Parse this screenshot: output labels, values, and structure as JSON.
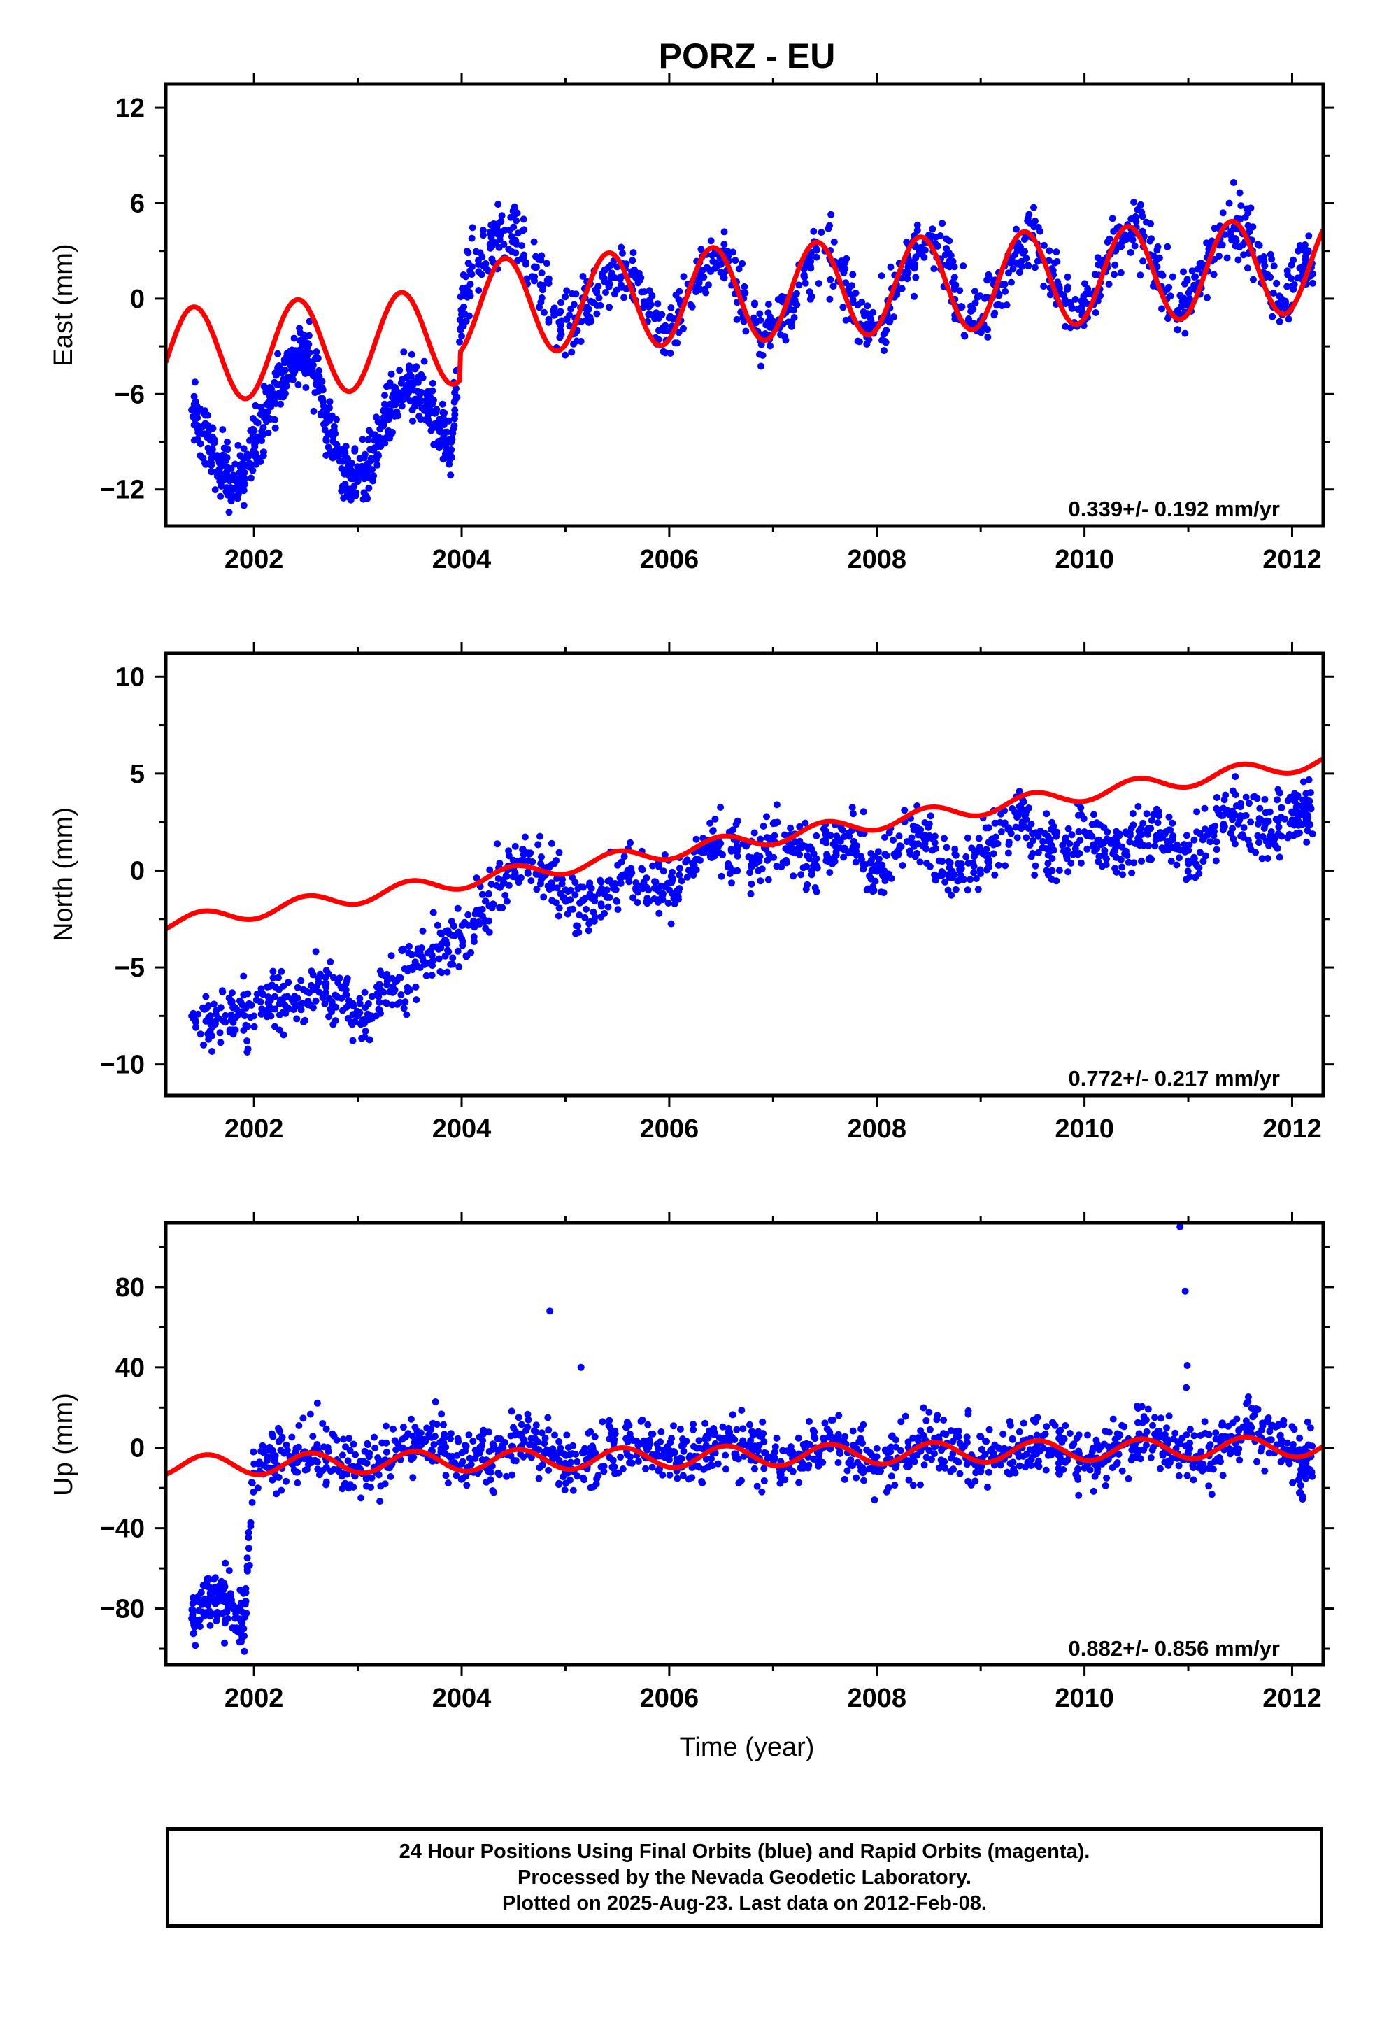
{
  "title": "PORZ - EU",
  "colors": {
    "final_orbits": "#0000ff",
    "model_fit": "#ff0000",
    "frame": "#000000"
  },
  "chart_data": [
    {
      "type": "scatter",
      "component": "east",
      "ylabel": "East (mm)",
      "xlabel": "",
      "xlim": [
        2001.15,
        2012.3
      ],
      "ylim": [
        -14.3,
        13.5
      ],
      "xticks": [
        2002,
        2004,
        2006,
        2008,
        2010,
        2012
      ],
      "xtick_labels": [
        "2002",
        "2004",
        "2006",
        "2008",
        "2010",
        "2012"
      ],
      "yticks": [
        -12,
        -6,
        0,
        6,
        12
      ],
      "ytick_labels": [
        "−12",
        "−6",
        "0",
        "6",
        "12"
      ],
      "rate_label": "0.339+/- 0.192 mm/yr",
      "series": [
        {
          "kind": "points",
          "x": [
            2001.4,
            2001.5,
            2001.6,
            2001.7,
            2001.8,
            2001.9,
            2002.0,
            2002.1,
            2002.2,
            2002.3,
            2002.4,
            2002.5,
            2002.6,
            2002.7,
            2002.8,
            2002.9,
            2003.0,
            2003.1,
            2003.2,
            2003.3,
            2003.4,
            2003.5,
            2003.6,
            2003.7,
            2003.8,
            2003.9,
            2004.0,
            2004.1,
            2004.3,
            2004.5,
            2004.7,
            2004.9,
            2005.1,
            2005.3,
            2005.5,
            2005.7,
            2005.9,
            2006.1,
            2006.3,
            2006.5,
            2006.7,
            2006.9,
            2007.1,
            2007.3,
            2007.5,
            2007.7,
            2007.9,
            2008.1,
            2008.3,
            2008.5,
            2008.7,
            2008.9,
            2009.1,
            2009.3,
            2009.5,
            2009.7,
            2009.9,
            2010.1,
            2010.3,
            2010.5,
            2010.7,
            2010.9,
            2011.1,
            2011.3,
            2011.5,
            2011.7,
            2011.9,
            2012.1
          ],
          "y": [
            -7,
            -8.5,
            -9.5,
            -10.5,
            -12,
            -11,
            -9,
            -7.5,
            -6,
            -4.5,
            -3.5,
            -3.5,
            -5,
            -7.5,
            -9.5,
            -11,
            -11.5,
            -10.5,
            -9,
            -7.5,
            -6,
            -5.5,
            -6,
            -7,
            -8,
            -9.5,
            -1,
            2,
            3.5,
            4.5,
            2,
            -1,
            -1.5,
            0.5,
            2,
            1,
            -2,
            -1,
            1.5,
            3,
            0,
            -2.5,
            -1,
            1.5,
            3,
            1,
            -2,
            -1,
            2,
            4,
            2,
            -1.5,
            0,
            2.5,
            4,
            1.5,
            -1.5,
            0.5,
            3,
            4.5,
            2,
            -1,
            1,
            3.5,
            5,
            2.5,
            -0.5,
            2
          ]
        },
        {
          "kind": "line",
          "name": "",
          "phases": [
            [
              2001.15,
              2003.98,
              -2.35,
              0.45,
              -0.1
            ],
            [
              2003.98,
              2012.3,
              -0.6,
              0.339,
              -0.1
            ]
          ],
          "amplitude": 3.0,
          "period": 1.0,
          "phase_year": 0.42
        }
      ]
    },
    {
      "type": "scatter",
      "component": "north",
      "ylabel": "North (mm)",
      "xlabel": "",
      "xlim": [
        2001.15,
        2012.3
      ],
      "ylim": [
        -11.6,
        11.2
      ],
      "xticks": [
        2002,
        2004,
        2006,
        2008,
        2010,
        2012
      ],
      "xtick_labels": [
        "2002",
        "2004",
        "2006",
        "2008",
        "2010",
        "2012"
      ],
      "yticks": [
        -10,
        -5,
        0,
        5,
        10
      ],
      "ytick_labels": [
        "−10",
        "−5",
        "0",
        "5",
        "10"
      ],
      "rate_label": "0.772+/- 0.217 mm/yr",
      "series": [
        {
          "kind": "points",
          "x": [
            2001.4,
            2001.6,
            2001.8,
            2002.0,
            2002.2,
            2002.4,
            2002.6,
            2002.8,
            2003.0,
            2003.2,
            2003.4,
            2003.6,
            2003.8,
            2004.0,
            2004.2,
            2004.4,
            2004.6,
            2004.8,
            2005.0,
            2005.2,
            2005.4,
            2005.6,
            2005.8,
            2006.0,
            2006.2,
            2006.4,
            2006.6,
            2006.8,
            2007.0,
            2007.2,
            2007.4,
            2007.6,
            2007.8,
            2008.0,
            2008.2,
            2008.4,
            2008.6,
            2008.8,
            2009.0,
            2009.2,
            2009.4,
            2009.6,
            2009.8,
            2010.0,
            2010.2,
            2010.4,
            2010.6,
            2010.8,
            2011.0,
            2011.2,
            2011.4,
            2011.6,
            2011.8,
            2012.0,
            2012.1
          ],
          "y": [
            -7.5,
            -8,
            -7,
            -7.5,
            -6.5,
            -7,
            -6,
            -6.5,
            -7.5,
            -6.5,
            -5.5,
            -5,
            -4,
            -3.5,
            -2,
            -0.5,
            0.5,
            0,
            -1,
            -2,
            -1,
            0,
            -1,
            -1,
            0,
            1.5,
            1,
            0.5,
            1.5,
            1,
            0.5,
            1.5,
            1,
            0,
            1,
            2,
            0.5,
            0,
            1,
            2,
            2.5,
            1.5,
            1,
            2,
            1.5,
            1,
            2,
            1.5,
            0.5,
            2,
            3,
            2.5,
            2,
            3,
            3
          ]
        },
        {
          "kind": "line",
          "name": "",
          "phases": [
            [
              2001.15,
              2012.3,
              -0.55,
              0.772,
              -0.3
            ]
          ],
          "amplitude": 0.4,
          "period": 1.0,
          "phase_year": 0.5
        }
      ]
    },
    {
      "type": "scatter",
      "component": "up",
      "ylabel": "Up (mm)",
      "xlabel": "Time (year)",
      "xlim": [
        2001.15,
        2012.3
      ],
      "ylim": [
        -108,
        112
      ],
      "xticks": [
        2002,
        2004,
        2006,
        2008,
        2010,
        2012
      ],
      "xtick_labels": [
        "2002",
        "2004",
        "2006",
        "2008",
        "2010",
        "2012"
      ],
      "yticks": [
        -80,
        -40,
        0,
        40,
        80
      ],
      "ytick_labels": [
        "−80",
        "−40",
        "0",
        "40",
        "80"
      ],
      "rate_label": "0.882+/- 0.856 mm/yr",
      "series": [
        {
          "kind": "points",
          "x": [
            2001.4,
            2001.5,
            2001.6,
            2001.7,
            2001.8,
            2001.9,
            2002.0,
            2002.2,
            2002.4,
            2002.6,
            2002.8,
            2003.0,
            2003.2,
            2003.4,
            2003.6,
            2003.8,
            2004.0,
            2004.2,
            2004.4,
            2004.6,
            2004.8,
            2005.0,
            2005.2,
            2005.4,
            2005.6,
            2005.8,
            2006.0,
            2006.2,
            2006.4,
            2006.6,
            2006.8,
            2007.0,
            2007.2,
            2007.4,
            2007.6,
            2007.8,
            2008.0,
            2008.2,
            2008.4,
            2008.6,
            2008.8,
            2009.0,
            2009.2,
            2009.4,
            2009.6,
            2009.8,
            2010.0,
            2010.2,
            2010.4,
            2010.6,
            2010.8,
            2011.0,
            2011.2,
            2011.4,
            2011.6,
            2011.8,
            2012.0,
            2012.1
          ],
          "y": [
            -85,
            -78,
            -72,
            -75,
            -80,
            -90,
            -8,
            -5,
            -2,
            0,
            -6,
            -10,
            -8,
            0,
            3,
            -2,
            -8,
            -6,
            0,
            4,
            -2,
            -8,
            -6,
            -2,
            3,
            0,
            -6,
            -4,
            0,
            4,
            -2,
            -8,
            -5,
            0,
            5,
            -2,
            -8,
            -5,
            0,
            4,
            -2,
            -6,
            -4,
            0,
            6,
            -2,
            -6,
            -4,
            2,
            8,
            2,
            -3,
            -4,
            4,
            10,
            4,
            -3,
            -8
          ]
        },
        {
          "kind": "points",
          "x": [
            2004.85,
            2005.15,
            2010.92,
            2010.97,
            2010.99,
            2010.98
          ],
          "y": [
            68,
            40,
            110,
            78,
            41,
            30
          ]
        },
        {
          "kind": "line",
          "name": "",
          "phases": [
            [
              2001.15,
              2012.3,
              -6.5,
              0.882,
              0.0
            ]
          ],
          "amplitude": 5.2,
          "period": 1.0,
          "phase_year": 0.55
        }
      ]
    }
  ],
  "footer": {
    "line1": "24 Hour Positions Using Final Orbits (blue) and Rapid Orbits (magenta).",
    "line2": "Processed by the Nevada Geodetic Laboratory.",
    "line3": "Plotted on 2025-Aug-23. Last data on 2012-Feb-08."
  }
}
